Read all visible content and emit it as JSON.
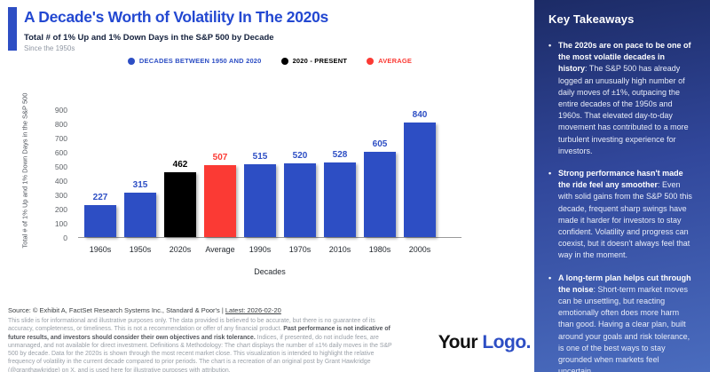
{
  "header": {
    "title": "A Decade's Worth of Volatility In The 2020s",
    "subtitle": "Total # of 1% Up and 1% Down Days in the S&P 500 by Decade",
    "tagline": "Since the 1950s"
  },
  "chart_data": {
    "type": "bar",
    "title": "A Decade's Worth of Volatility In The 2020s",
    "subtitle": "Total # of 1% Up and 1% Down Days in the S&P 500 by Decade",
    "categories": [
      "1960s",
      "1950s",
      "2020s",
      "Average",
      "1990s",
      "1970s",
      "2010s",
      "1980s",
      "2000s"
    ],
    "values": [
      227,
      315,
      462,
      507,
      515,
      520,
      528,
      605,
      840
    ],
    "bar_colors": [
      "#2d4ec4",
      "#2d4ec4",
      "#000000",
      "#fb3a34",
      "#2d4ec4",
      "#2d4ec4",
      "#2d4ec4",
      "#2d4ec4",
      "#2d4ec4"
    ],
    "legend": [
      {
        "label": "DECADES BETWEEN 1950 AND 2020",
        "color": "#2d4ec4"
      },
      {
        "label": "2020 - PRESENT",
        "color": "#000000"
      },
      {
        "label": "AVERAGE",
        "color": "#fb3a34"
      }
    ],
    "legend_position": "top",
    "xlabel": "Decades",
    "ylabel": "Total # of 1% Up and 1% Down Days in the S&P 500",
    "ylim": [
      0,
      900
    ],
    "ytick_step": 100,
    "grid": false
  },
  "footer": {
    "source_prefix": "Source: © Exhibit A, FactSet Research Systems Inc., Standard & Poor's | ",
    "source_link": "Latest: 2026-02-20",
    "disclaimer_1": "This slide is for informational and illustrative purposes only. The data provided is believed to be accurate, but there is no guarantee of its accuracy, completeness, or timeliness. This is not a recommendation or offer of any financial product. ",
    "disclaimer_bold": "Past performance is not indicative of future results, and investors should consider their own objectives and risk tolerance.",
    "disclaimer_2": " Indices, if presented, do not include fees, are unmanaged, and not available for direct investment. Definitions & Methodology: The chart displays the number of ±1% daily moves in the S&P 500 by decade. Data for the 2020s is shown through the most recent market close. This visualization is intended to highlight the relative frequency of volatility in the current decade compared to prior periods. The chart is a recreation of an original post by Grant Hawkridge (@granthawkridge) on X, and is used here for illustrative purposes with attribution.",
    "logo_part1": "Your",
    "logo_part2": "Logo."
  },
  "sidebar": {
    "heading": "Key Takeaways",
    "items": [
      {
        "bold": "The 2020s are on pace to be one of the most volatile decades in history",
        "rest": ": The S&P 500 has already logged an unusually high number of daily moves of ±1%, outpacing the entire decades of the 1950s and 1960s. That elevated day-to-day movement has contributed to a more turbulent investing experience for investors."
      },
      {
        "bold": "Strong performance hasn't made the ride feel any smoother",
        "rest": ": Even with solid gains from the S&P 500 this decade, frequent sharp swings have made it harder for investors to stay confident. Volatility and progress can coexist, but it doesn't always feel that way in the moment."
      },
      {
        "bold": "A long-term plan helps cut through the noise",
        "rest": ": Short-term market moves can be unsettling, but reacting emotionally often does more harm than good. Having a clear plan, built around your goals and risk tolerance, is one of the best ways to stay grounded when markets feel uncertain."
      }
    ]
  },
  "colors": {
    "accent_blue": "#2d4ec4",
    "title_blue": "#2348d1",
    "bar_blue": "#2d4ec4",
    "bar_black": "#000000",
    "bar_red": "#fb3a34",
    "sidebar_gradient_top": "#1c2b66",
    "sidebar_gradient_bottom": "#4a6cbe"
  }
}
